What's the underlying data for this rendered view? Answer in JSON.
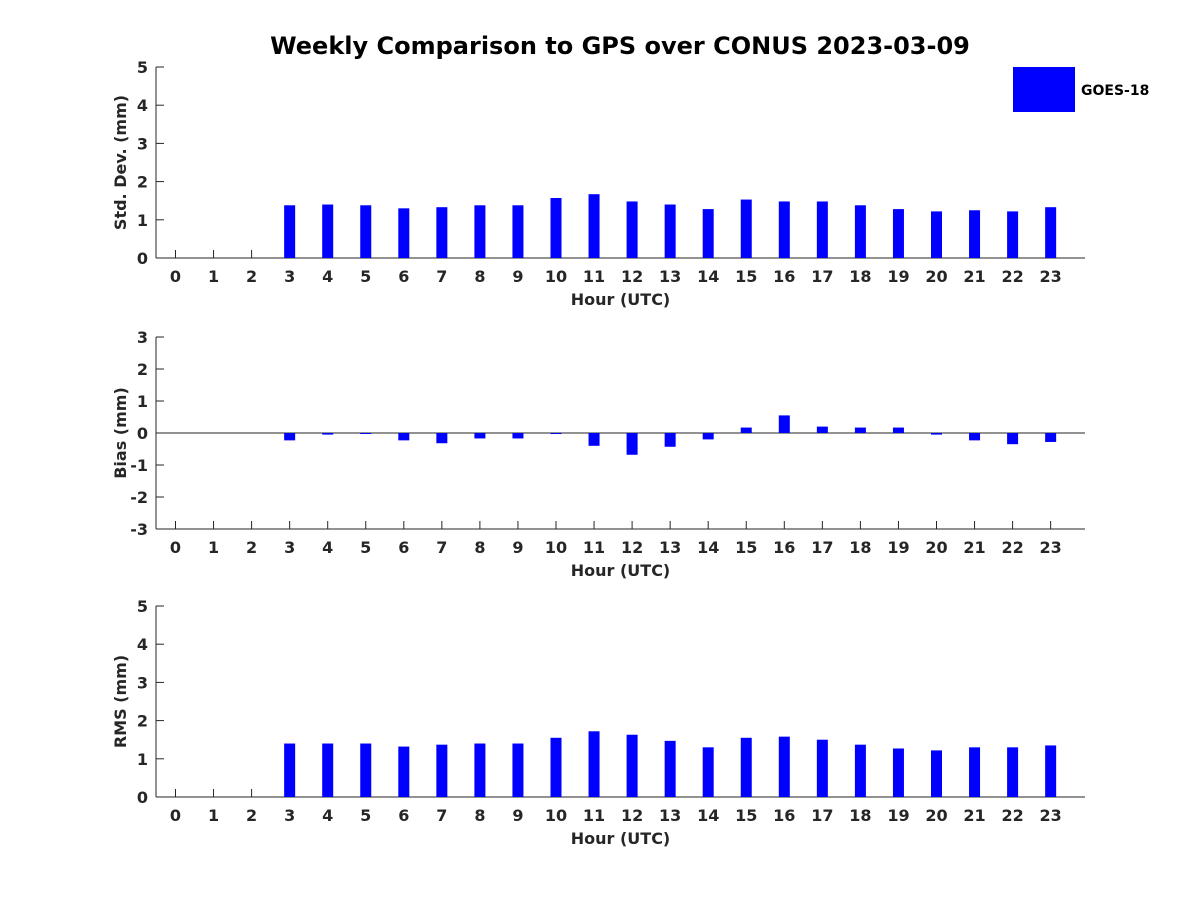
{
  "title": "Weekly Comparison to GPS over CONUS 2023-03-09",
  "legend": {
    "label": "GOES-18",
    "color": "#0000ff",
    "placement": "top-right"
  },
  "chart_data": [
    {
      "type": "bar",
      "xlabel": "Hour (UTC)",
      "ylabel": "Std. Dev. (mm)",
      "ylim": [
        0,
        5
      ],
      "yticks": [
        "0",
        "1",
        "2",
        "3",
        "4",
        "5"
      ],
      "categories": [
        "0",
        "1",
        "2",
        "3",
        "4",
        "5",
        "6",
        "7",
        "8",
        "9",
        "10",
        "11",
        "12",
        "13",
        "14",
        "15",
        "16",
        "17",
        "18",
        "19",
        "20",
        "21",
        "22",
        "23"
      ],
      "series": [
        {
          "name": "GOES-18",
          "values": [
            null,
            null,
            null,
            1.38,
            1.4,
            1.38,
            1.3,
            1.33,
            1.38,
            1.38,
            1.57,
            1.67,
            1.48,
            1.4,
            1.28,
            1.53,
            1.48,
            1.48,
            1.38,
            1.28,
            1.22,
            1.25,
            1.22,
            1.33
          ]
        }
      ]
    },
    {
      "type": "bar",
      "xlabel": "Hour (UTC)",
      "ylabel": "Bias (mm)",
      "ylim": [
        -3,
        3
      ],
      "yticks": [
        "-3",
        "-2",
        "-1",
        "0",
        "1",
        "2",
        "3"
      ],
      "categories": [
        "0",
        "1",
        "2",
        "3",
        "4",
        "5",
        "6",
        "7",
        "8",
        "9",
        "10",
        "11",
        "12",
        "13",
        "14",
        "15",
        "16",
        "17",
        "18",
        "19",
        "20",
        "21",
        "22",
        "23"
      ],
      "series": [
        {
          "name": "GOES-18",
          "values": [
            null,
            null,
            null,
            -0.23,
            -0.05,
            -0.02,
            -0.23,
            -0.32,
            -0.17,
            -0.17,
            -0.02,
            -0.4,
            -0.68,
            -0.43,
            -0.2,
            0.17,
            0.55,
            0.2,
            0.17,
            0.17,
            -0.05,
            -0.23,
            -0.35,
            -0.28
          ]
        }
      ]
    },
    {
      "type": "bar",
      "xlabel": "Hour (UTC)",
      "ylabel": "RMS (mm)",
      "ylim": [
        0,
        5
      ],
      "yticks": [
        "0",
        "1",
        "2",
        "3",
        "4",
        "5"
      ],
      "categories": [
        "0",
        "1",
        "2",
        "3",
        "4",
        "5",
        "6",
        "7",
        "8",
        "9",
        "10",
        "11",
        "12",
        "13",
        "14",
        "15",
        "16",
        "17",
        "18",
        "19",
        "20",
        "21",
        "22",
        "23"
      ],
      "series": [
        {
          "name": "GOES-18",
          "values": [
            null,
            null,
            null,
            1.4,
            1.4,
            1.4,
            1.32,
            1.37,
            1.4,
            1.4,
            1.55,
            1.72,
            1.63,
            1.47,
            1.3,
            1.55,
            1.58,
            1.5,
            1.37,
            1.27,
            1.22,
            1.3,
            1.3,
            1.35
          ]
        }
      ]
    }
  ]
}
